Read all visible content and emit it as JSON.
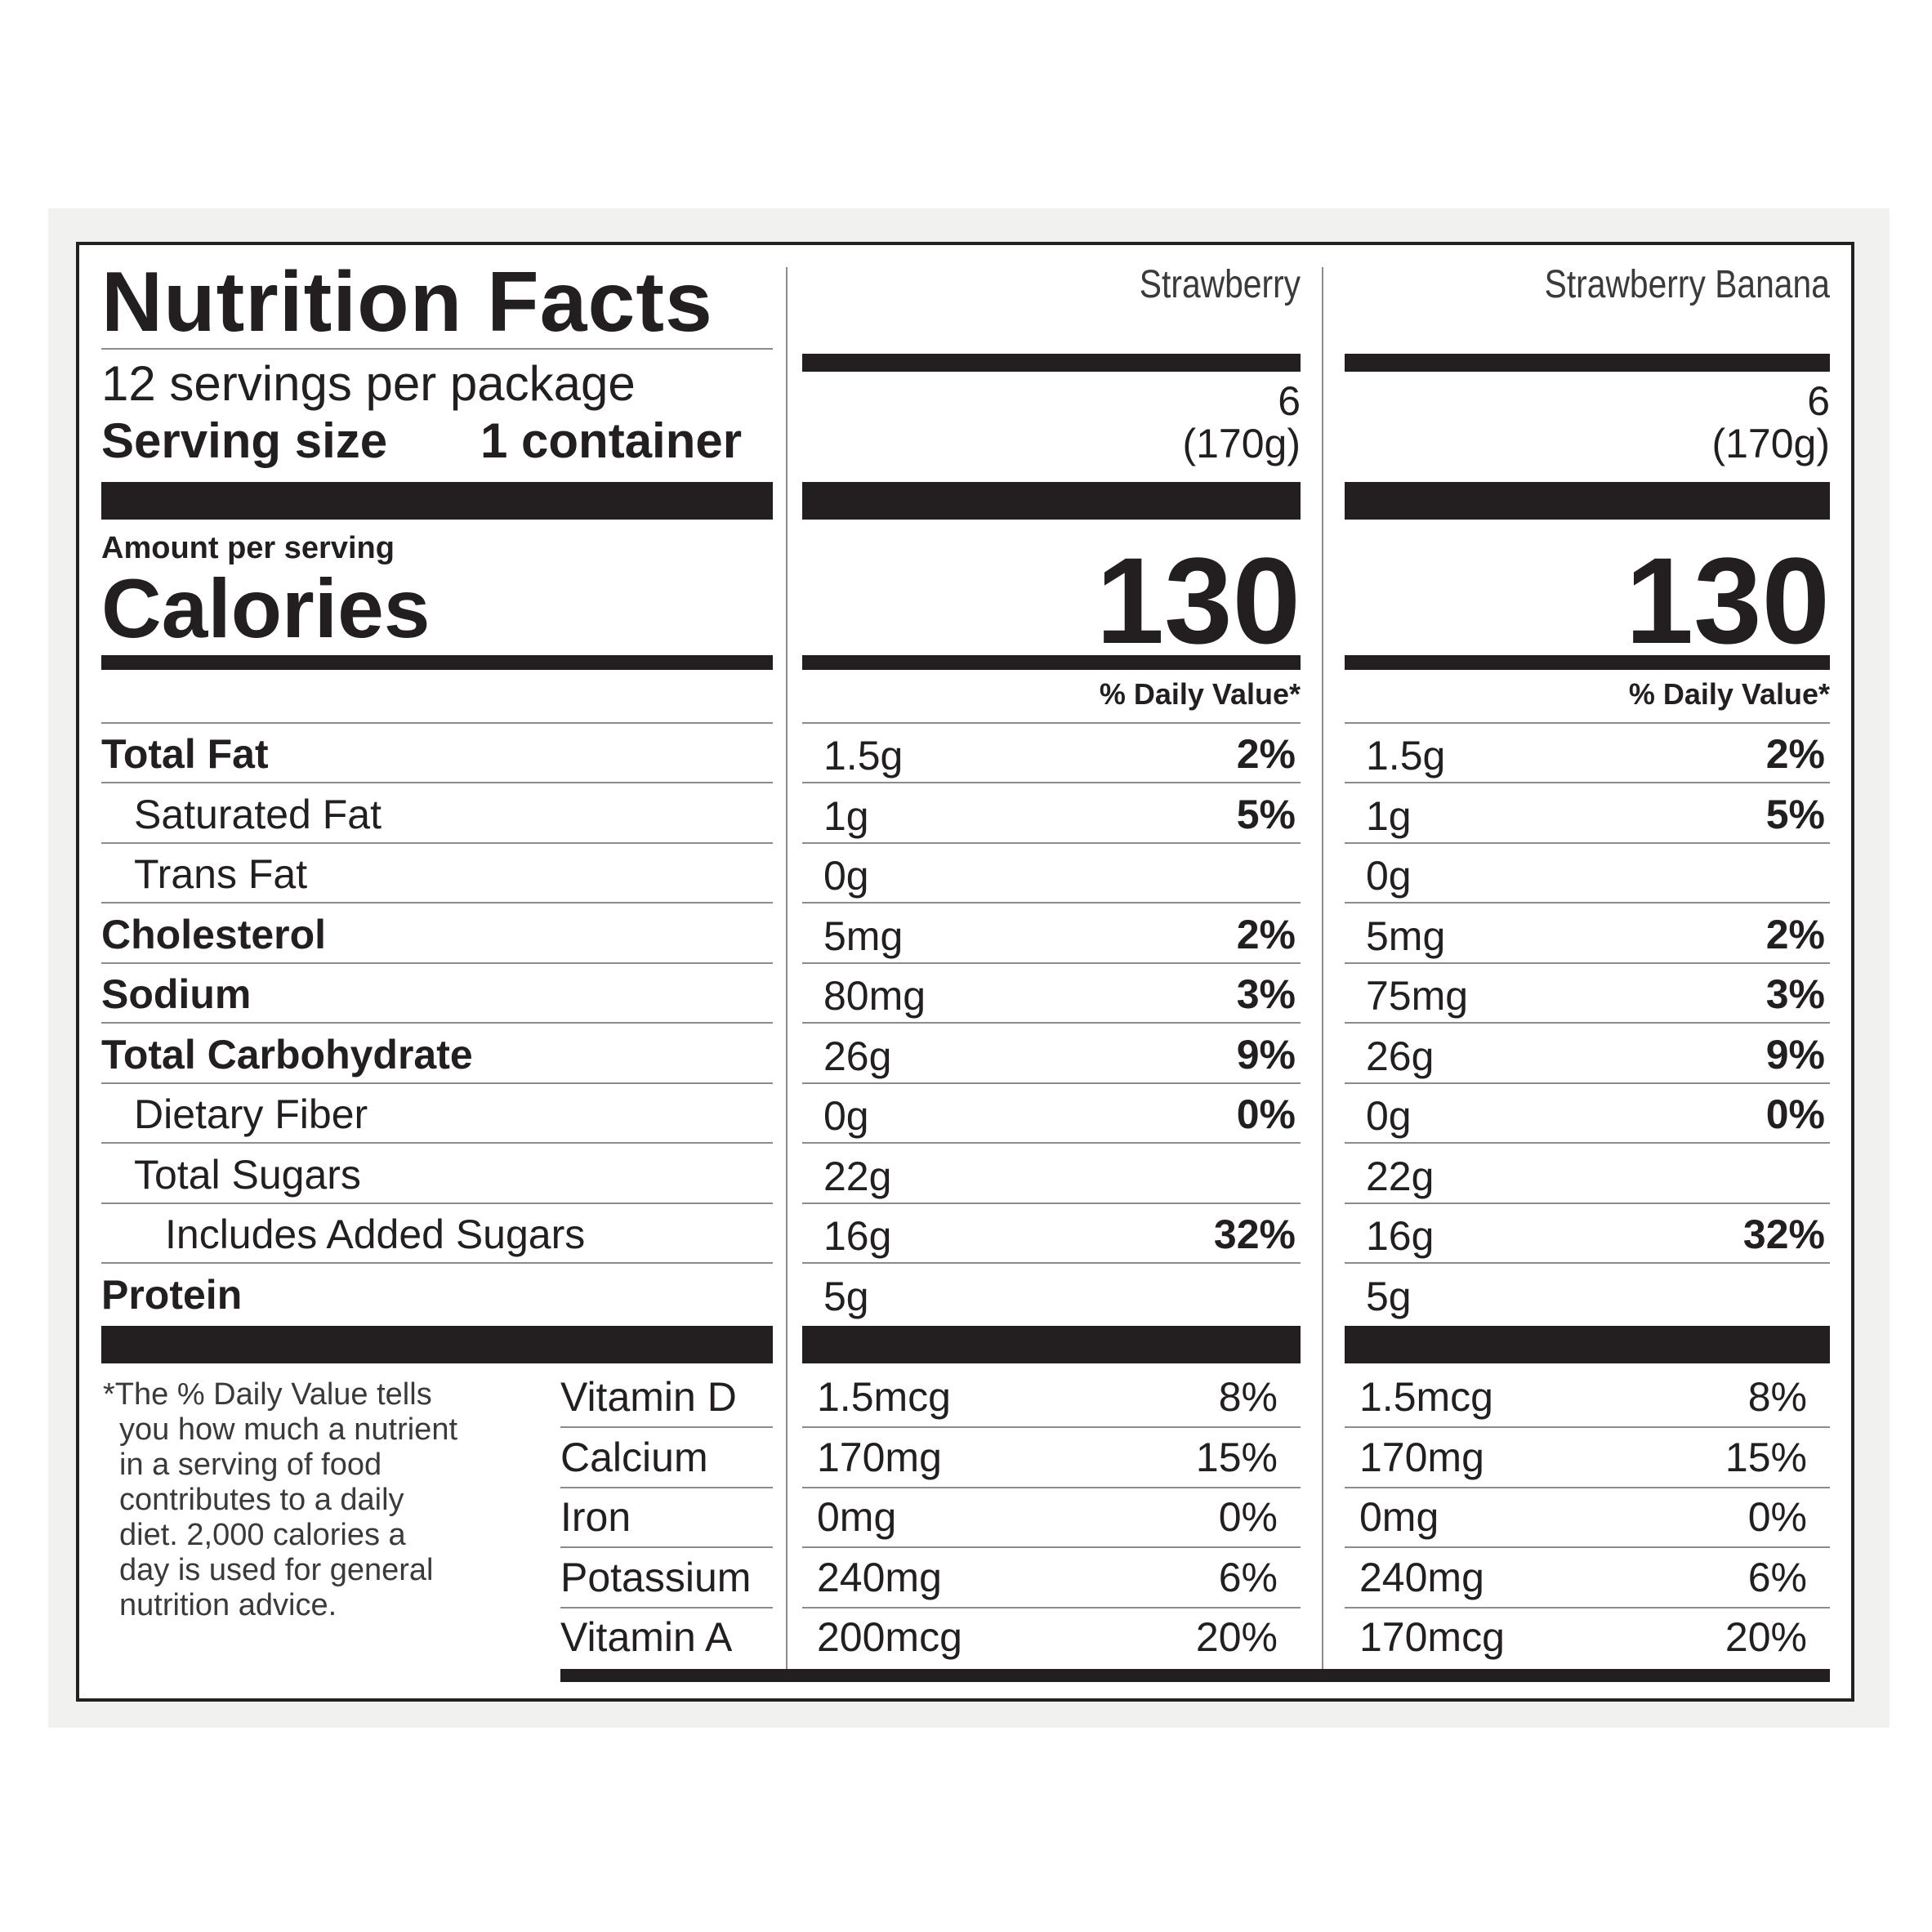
{
  "title": "Nutrition Facts",
  "servings_per_package": "12 servings per package",
  "serving_size_label": "Serving size",
  "serving_size_value": "1 container",
  "amount_per_serving": "Amount per serving",
  "calories_label": "Calories",
  "daily_value_header": "% Daily Value*",
  "nutrients": [
    {
      "label": "Total Fat"
    },
    {
      "label": "Saturated Fat"
    },
    {
      "label": "Trans Fat"
    },
    {
      "label": "Cholesterol"
    },
    {
      "label": "Sodium"
    },
    {
      "label": "Total Carbohydrate"
    },
    {
      "label": "Dietary Fiber"
    },
    {
      "label": "Total Sugars"
    },
    {
      "label": "Includes Added Sugars"
    },
    {
      "label": "Protein"
    }
  ],
  "vitamins": [
    {
      "label": "Vitamin D"
    },
    {
      "label": "Calcium"
    },
    {
      "label": "Iron"
    },
    {
      "label": "Potassium"
    },
    {
      "label": "Vitamin A"
    }
  ],
  "footnote": [
    "*The % Daily Value tells",
    "you how much a nutrient",
    "in a serving of food",
    "contributes to a daily",
    "diet. 2,000 calories a",
    "day is used for general",
    "nutrition advice."
  ],
  "columns": [
    {
      "name": "Strawberry",
      "servings": "6",
      "serving_grams": "(170g)",
      "calories": "130",
      "nutrients": [
        {
          "amount": "1.5g",
          "dv": "2%"
        },
        {
          "amount": "1g",
          "dv": "5%"
        },
        {
          "amount": "0g",
          "dv": ""
        },
        {
          "amount": "5mg",
          "dv": "2%"
        },
        {
          "amount": "80mg",
          "dv": "3%"
        },
        {
          "amount": "26g",
          "dv": "9%"
        },
        {
          "amount": "0g",
          "dv": "0%"
        },
        {
          "amount": "22g",
          "dv": ""
        },
        {
          "amount": "16g",
          "dv": "32%"
        },
        {
          "amount": "5g",
          "dv": ""
        }
      ],
      "vitamins": [
        {
          "amount": "1.5mcg",
          "dv": "8%"
        },
        {
          "amount": "170mg",
          "dv": "15%"
        },
        {
          "amount": "0mg",
          "dv": "0%"
        },
        {
          "amount": "240mg",
          "dv": "6%"
        },
        {
          "amount": "200mcg",
          "dv": "20%"
        }
      ]
    },
    {
      "name": "Strawberry Banana",
      "servings": "6",
      "serving_grams": "(170g)",
      "calories": "130",
      "nutrients": [
        {
          "amount": "1.5g",
          "dv": "2%"
        },
        {
          "amount": "1g",
          "dv": "5%"
        },
        {
          "amount": "0g",
          "dv": ""
        },
        {
          "amount": "5mg",
          "dv": "2%"
        },
        {
          "amount": "75mg",
          "dv": "3%"
        },
        {
          "amount": "26g",
          "dv": "9%"
        },
        {
          "amount": "0g",
          "dv": "0%"
        },
        {
          "amount": "22g",
          "dv": ""
        },
        {
          "amount": "16g",
          "dv": "32%"
        },
        {
          "amount": "5g",
          "dv": ""
        }
      ],
      "vitamins": [
        {
          "amount": "1.5mcg",
          "dv": "8%"
        },
        {
          "amount": "170mg",
          "dv": "15%"
        },
        {
          "amount": "0mg",
          "dv": "0%"
        },
        {
          "amount": "240mg",
          "dv": "6%"
        },
        {
          "amount": "170mcg",
          "dv": "20%"
        }
      ]
    }
  ]
}
